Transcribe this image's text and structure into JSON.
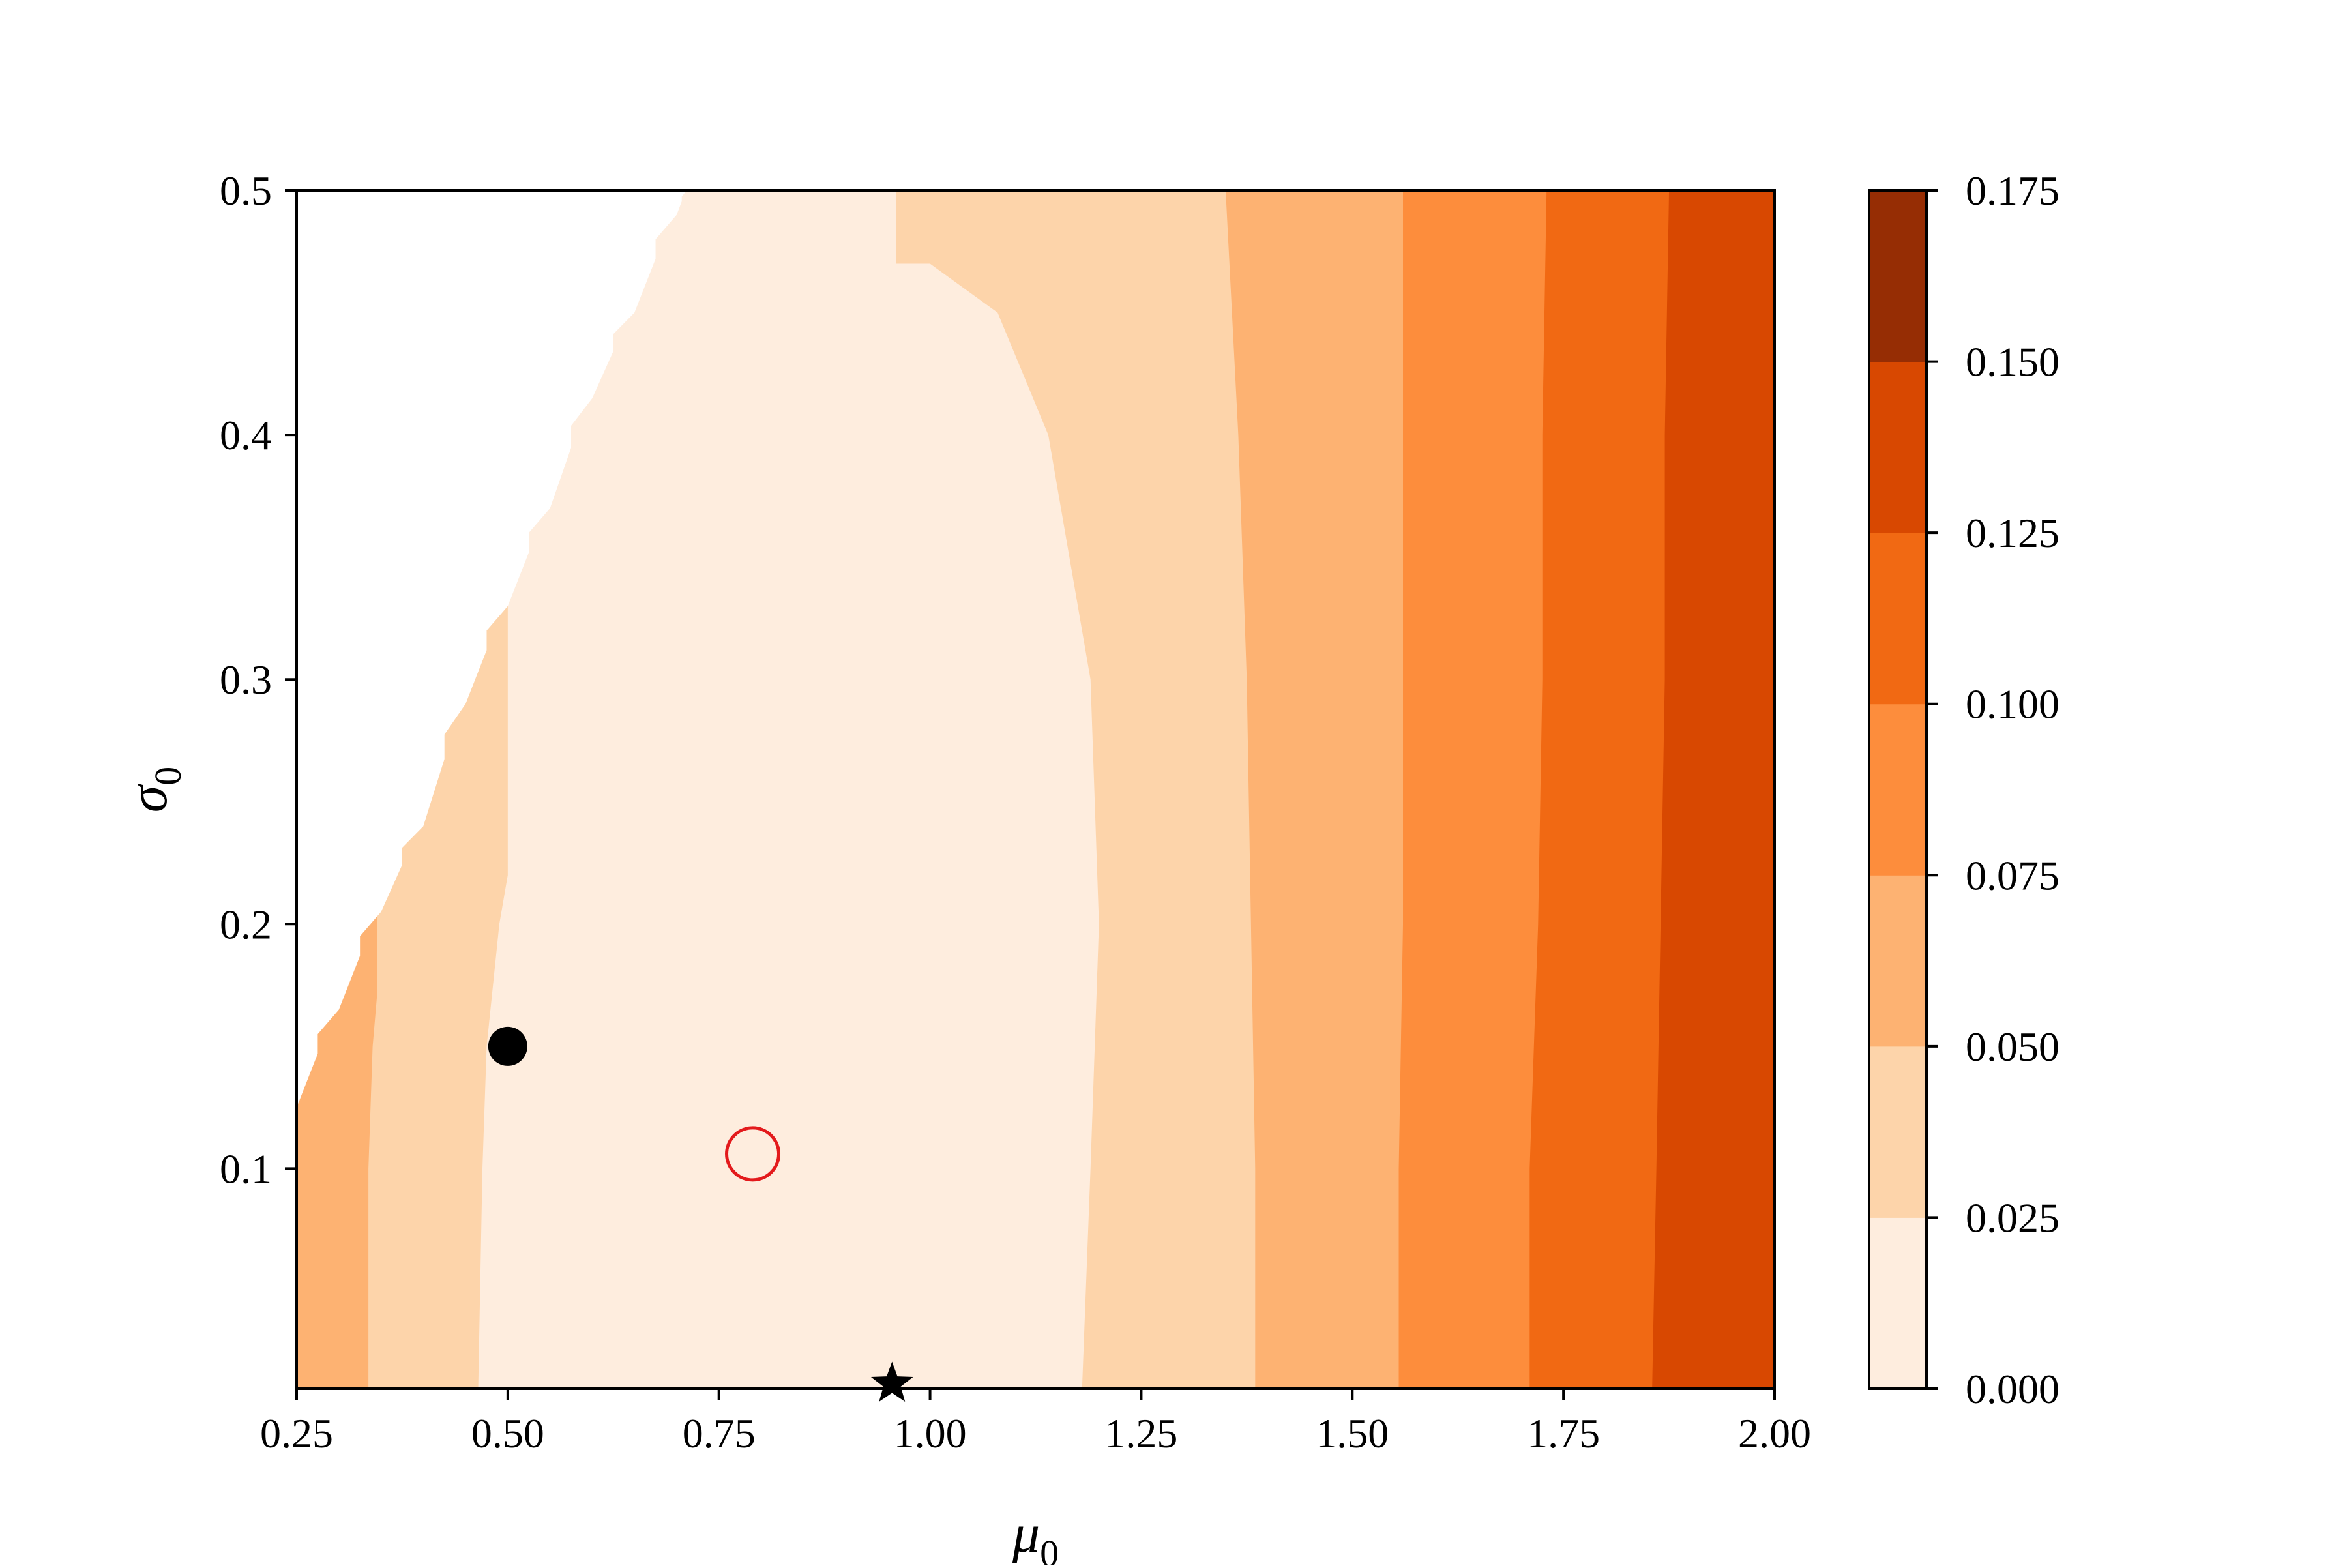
{
  "chart_data": {
    "type": "heatmap",
    "subtype": "filled-contour",
    "title": "",
    "xlabel": "μ",
    "xlabel_sub": "0",
    "ylabel": "σ",
    "ylabel_sub": "0",
    "xlim": [
      0.25,
      2.0
    ],
    "ylim": [
      0.01,
      0.5
    ],
    "x_ticks": [
      0.25,
      0.5,
      0.75,
      1.0,
      1.25,
      1.5,
      1.75,
      2.0
    ],
    "x_tick_labels": [
      "0.25",
      "0.50",
      "0.75",
      "1.00",
      "1.25",
      "1.50",
      "1.75",
      "2.00"
    ],
    "y_ticks": [
      0.1,
      0.2,
      0.3,
      0.4,
      0.5
    ],
    "y_tick_labels": [
      "0.1",
      "0.2",
      "0.3",
      "0.4",
      "0.5"
    ],
    "grid": false,
    "colorbar": {
      "position": "right",
      "levels": [
        0.0,
        0.025,
        0.05,
        0.075,
        0.1,
        0.125,
        0.15,
        0.175
      ],
      "tick_labels": [
        "0.000",
        "0.025",
        "0.050",
        "0.075",
        "0.100",
        "0.125",
        "0.150",
        "0.175"
      ],
      "colors": [
        "#feedde",
        "#fdd4aa",
        "#fdb272",
        "#fd8d3c",
        "#f16913",
        "#d84801",
        "#962d04"
      ]
    },
    "contour_boundaries": [
      {
        "level": 0.025,
        "left": [
          [
            0.465,
            0.01
          ],
          [
            0.47,
            0.1
          ],
          [
            0.475,
            0.15
          ],
          [
            0.49,
            0.2
          ],
          [
            0.5,
            0.22
          ]
        ],
        "right": [
          [
            1.18,
            0.01
          ],
          [
            1.19,
            0.1
          ],
          [
            1.2,
            0.2
          ],
          [
            1.19,
            0.3
          ],
          [
            1.14,
            0.4
          ],
          [
            1.08,
            0.45
          ],
          [
            1.0,
            0.47
          ],
          [
            0.96,
            0.47
          ]
        ]
      },
      {
        "level": 0.05,
        "left": [
          [
            0.335,
            0.01
          ],
          [
            0.335,
            0.1
          ],
          [
            0.34,
            0.15
          ],
          [
            0.345,
            0.17
          ]
        ],
        "right": [
          [
            1.385,
            0.01
          ],
          [
            1.385,
            0.1
          ],
          [
            1.38,
            0.2
          ],
          [
            1.375,
            0.3
          ],
          [
            1.365,
            0.4
          ],
          [
            1.35,
            0.5
          ]
        ]
      },
      {
        "level": 0.075,
        "right": [
          [
            1.555,
            0.01
          ],
          [
            1.555,
            0.1
          ],
          [
            1.56,
            0.2
          ],
          [
            1.56,
            0.3
          ],
          [
            1.56,
            0.4
          ],
          [
            1.56,
            0.5
          ]
        ]
      },
      {
        "level": 0.1,
        "right": [
          [
            1.71,
            0.01
          ],
          [
            1.71,
            0.1
          ],
          [
            1.72,
            0.2
          ],
          [
            1.725,
            0.3
          ],
          [
            1.725,
            0.4
          ],
          [
            1.73,
            0.5
          ]
        ]
      },
      {
        "level": 0.125,
        "right": [
          [
            1.855,
            0.01
          ],
          [
            1.86,
            0.1
          ],
          [
            1.865,
            0.2
          ],
          [
            1.87,
            0.3
          ],
          [
            1.87,
            0.4
          ],
          [
            1.875,
            0.5
          ]
        ]
      }
    ],
    "nan_region_edge": [
      [
        0.25,
        0.125
      ],
      [
        0.3,
        0.165
      ],
      [
        0.35,
        0.205
      ],
      [
        0.4,
        0.24
      ],
      [
        0.45,
        0.29
      ],
      [
        0.5,
        0.33
      ],
      [
        0.55,
        0.37
      ],
      [
        0.6,
        0.415
      ],
      [
        0.65,
        0.45
      ],
      [
        0.7,
        0.49
      ],
      [
        0.712,
        0.5
      ]
    ],
    "markers": [
      {
        "name": "filled-circle",
        "x": 0.5,
        "y": 0.15,
        "color": "#000000",
        "fill": true
      },
      {
        "name": "open-circle",
        "x": 0.79,
        "y": 0.106,
        "color": "#e31a1c",
        "fill": false
      },
      {
        "name": "star",
        "x": 0.955,
        "y": 0.012,
        "color": "#000000",
        "fill": true
      }
    ]
  }
}
